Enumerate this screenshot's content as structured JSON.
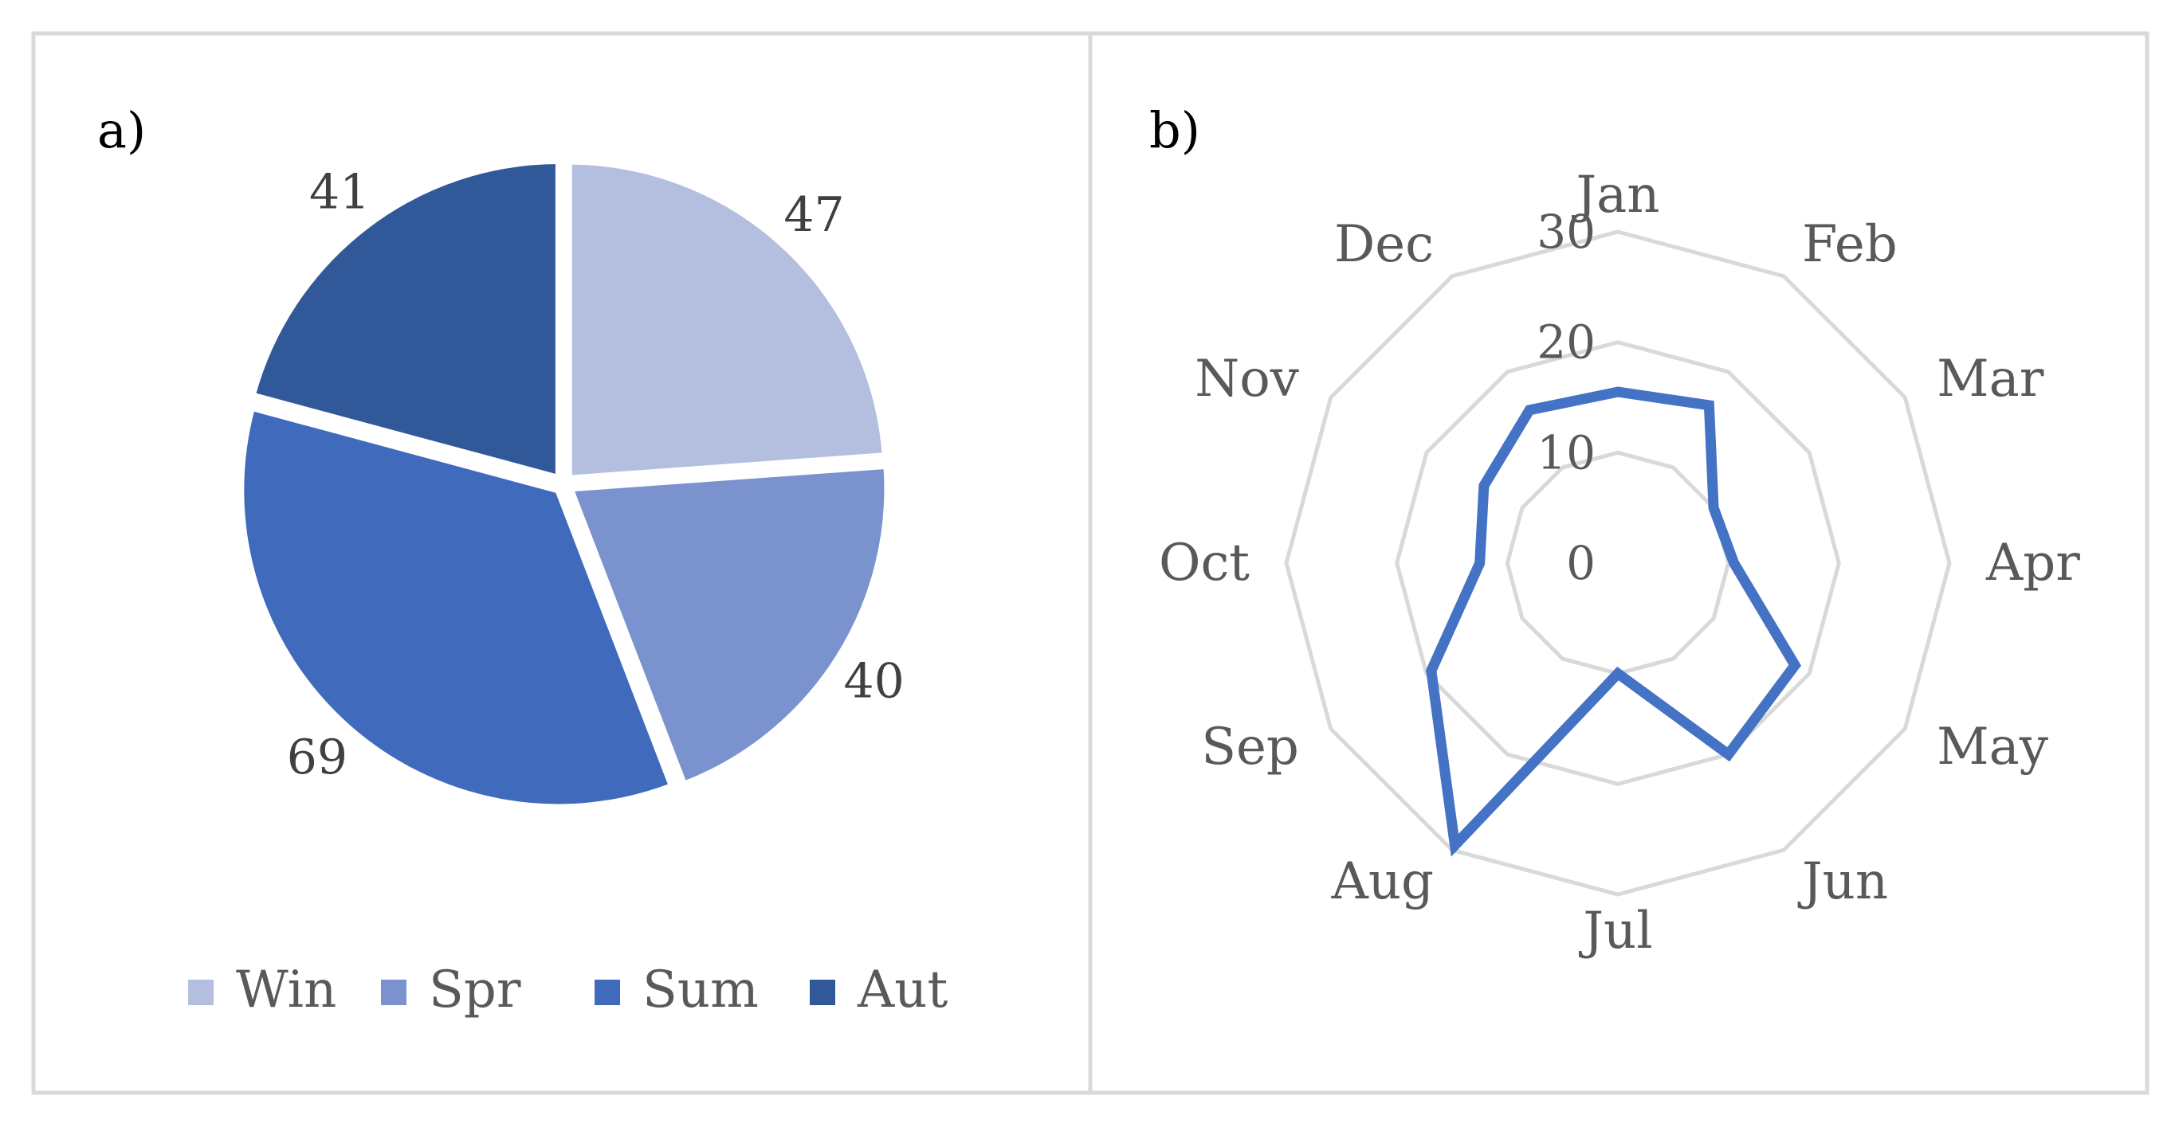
{
  "chart_data": [
    {
      "type": "pie",
      "panel_label": "a)",
      "categories": [
        "Win",
        "Spr",
        "Sum",
        "Aut"
      ],
      "values": [
        47,
        40,
        69,
        41
      ],
      "colors": [
        "#b4bfdf",
        "#7a93cf",
        "#406bbc",
        "#31599a"
      ],
      "legend_position": "bottom"
    },
    {
      "type": "radar",
      "panel_label": "b)",
      "categories": [
        "Jan",
        "Feb",
        "Mar",
        "Apr",
        "May",
        "Jun",
        "Jul",
        "Aug",
        "Sep",
        "Oct",
        "Nov",
        "Dec"
      ],
      "values": [
        15.5,
        16.5,
        10.0,
        10.5,
        18.5,
        20.0,
        10.0,
        29.5,
        19.5,
        12.5,
        14.0,
        16.0
      ],
      "rlim": [
        0,
        30
      ],
      "ticks": [
        "0",
        "10",
        "20",
        "30"
      ],
      "grid": true,
      "line_color": "#4472c4",
      "grid_color": "#d9d9d9"
    }
  ]
}
